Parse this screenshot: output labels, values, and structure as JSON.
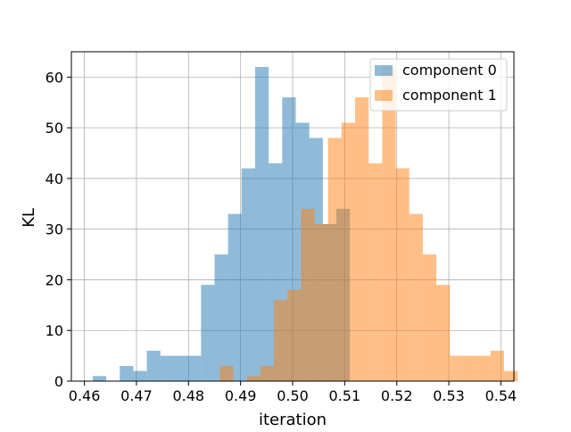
{
  "chart_data": {
    "type": "histogram",
    "title": "",
    "xlabel": "iteration",
    "ylabel": "KL",
    "xlim": [
      0.4575,
      0.5425
    ],
    "ylim": [
      0,
      65
    ],
    "xticks": [
      "0.46",
      "0.47",
      "0.48",
      "0.49",
      "0.50",
      "0.51",
      "0.52",
      "0.53",
      "0.54"
    ],
    "yticks": [
      "0",
      "10",
      "20",
      "30",
      "40",
      "50",
      "60"
    ],
    "grid": true,
    "legend_position": "top-right",
    "series": [
      {
        "name": "component 0",
        "color": "#1f77b4",
        "opacity": 0.5,
        "bins": [
          {
            "x0": 0.4616,
            "x1": 0.4642,
            "count": 1
          },
          {
            "x0": 0.4642,
            "x1": 0.4668,
            "count": 0
          },
          {
            "x0": 0.4668,
            "x1": 0.4694,
            "count": 3
          },
          {
            "x0": 0.4694,
            "x1": 0.472,
            "count": 2
          },
          {
            "x0": 0.472,
            "x1": 0.4746,
            "count": 6
          },
          {
            "x0": 0.4746,
            "x1": 0.4772,
            "count": 5
          },
          {
            "x0": 0.4772,
            "x1": 0.4798,
            "count": 5
          },
          {
            "x0": 0.4798,
            "x1": 0.4824,
            "count": 5
          },
          {
            "x0": 0.4824,
            "x1": 0.485,
            "count": 19
          },
          {
            "x0": 0.485,
            "x1": 0.4876,
            "count": 25
          },
          {
            "x0": 0.4876,
            "x1": 0.4902,
            "count": 33
          },
          {
            "x0": 0.4902,
            "x1": 0.4928,
            "count": 42
          },
          {
            "x0": 0.4928,
            "x1": 0.4954,
            "count": 62
          },
          {
            "x0": 0.4954,
            "x1": 0.498,
            "count": 43
          },
          {
            "x0": 0.498,
            "x1": 0.5006,
            "count": 56
          },
          {
            "x0": 0.5006,
            "x1": 0.5032,
            "count": 51
          },
          {
            "x0": 0.5032,
            "x1": 0.5058,
            "count": 48
          },
          {
            "x0": 0.5058,
            "x1": 0.5084,
            "count": 31
          },
          {
            "x0": 0.5084,
            "x1": 0.511,
            "count": 34
          }
        ]
      },
      {
        "name": "component 1",
        "color": "#ff7f0e",
        "opacity": 0.5,
        "bins": [
          {
            "x0": 0.486,
            "x1": 0.4886,
            "count": 3
          },
          {
            "x0": 0.4886,
            "x1": 0.4912,
            "count": 0
          },
          {
            "x0": 0.4912,
            "x1": 0.4938,
            "count": 1
          },
          {
            "x0": 0.4938,
            "x1": 0.4964,
            "count": 3
          },
          {
            "x0": 0.4964,
            "x1": 0.499,
            "count": 16
          },
          {
            "x0": 0.499,
            "x1": 0.5016,
            "count": 18
          },
          {
            "x0": 0.5016,
            "x1": 0.5042,
            "count": 34
          },
          {
            "x0": 0.5042,
            "x1": 0.5068,
            "count": 31
          },
          {
            "x0": 0.5068,
            "x1": 0.5094,
            "count": 48
          },
          {
            "x0": 0.5094,
            "x1": 0.512,
            "count": 51
          },
          {
            "x0": 0.512,
            "x1": 0.5146,
            "count": 56
          },
          {
            "x0": 0.5146,
            "x1": 0.5172,
            "count": 43
          },
          {
            "x0": 0.5172,
            "x1": 0.5198,
            "count": 62
          },
          {
            "x0": 0.5198,
            "x1": 0.5224,
            "count": 42
          },
          {
            "x0": 0.5224,
            "x1": 0.525,
            "count": 33
          },
          {
            "x0": 0.525,
            "x1": 0.5276,
            "count": 25
          },
          {
            "x0": 0.5276,
            "x1": 0.5302,
            "count": 19
          },
          {
            "x0": 0.5302,
            "x1": 0.5328,
            "count": 5
          },
          {
            "x0": 0.5328,
            "x1": 0.5354,
            "count": 5
          },
          {
            "x0": 0.5354,
            "x1": 0.538,
            "count": 5
          },
          {
            "x0": 0.538,
            "x1": 0.5406,
            "count": 6
          },
          {
            "x0": 0.5406,
            "x1": 0.5432,
            "count": 2
          }
        ]
      }
    ]
  }
}
